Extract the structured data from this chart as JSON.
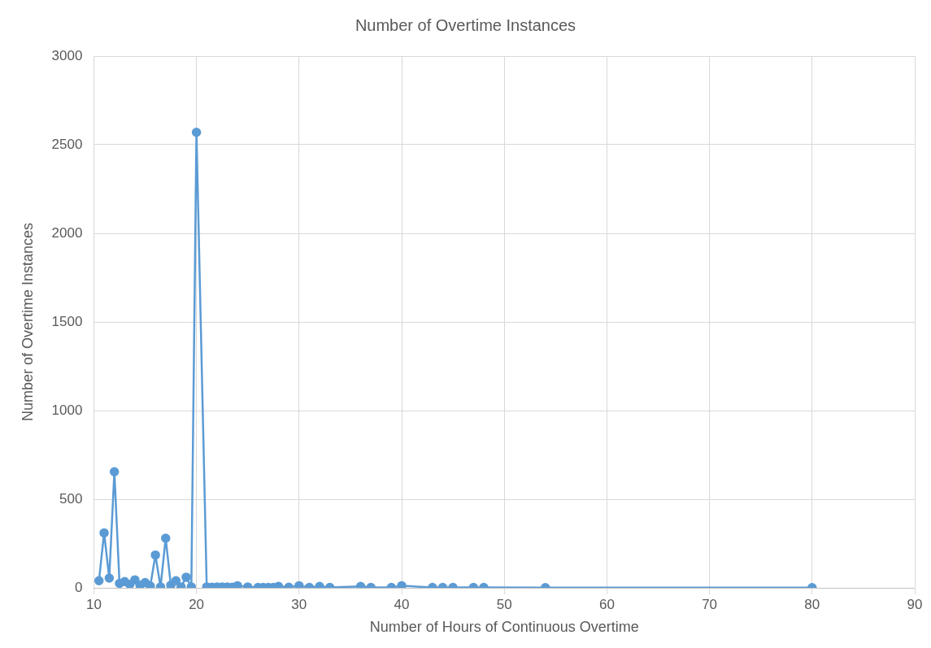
{
  "chart_data": {
    "type": "line",
    "title": "Number of Overtime Instances",
    "xlabel": "Number of Hours of Continuous Overtime",
    "ylabel": "Number of Overtime Instances",
    "x": [
      10.5,
      11,
      11.5,
      12,
      12.5,
      13,
      13.5,
      14,
      14.5,
      15,
      15.5,
      16,
      16.5,
      17,
      17.5,
      18,
      18.5,
      19,
      19.5,
      20,
      21,
      21.5,
      22,
      22.5,
      23,
      23.5,
      24,
      25,
      26,
      26.5,
      27,
      27.5,
      28,
      29,
      30,
      31,
      32,
      33,
      36,
      37,
      39,
      40,
      43,
      44,
      45,
      47,
      48,
      54,
      80
    ],
    "series": [
      {
        "color": "#5b9bd5",
        "values": [
          40,
          310,
          55,
          655,
          25,
          35,
          20,
          45,
          15,
          30,
          10,
          185,
          5,
          280,
          15,
          40,
          5,
          60,
          5,
          2570,
          5,
          3,
          5,
          5,
          5,
          3,
          12,
          5,
          2,
          2,
          2,
          2,
          8,
          3,
          12,
          2,
          8,
          2,
          8,
          2,
          2,
          12,
          2,
          2,
          2,
          2,
          2,
          1,
          1
        ]
      }
    ],
    "xlim": [
      10,
      90
    ],
    "xticks": [
      10,
      20,
      30,
      40,
      50,
      60,
      70,
      80,
      90
    ],
    "ylim": [
      0,
      3000
    ],
    "yticks": [
      0,
      500,
      1000,
      1500,
      2000,
      2500,
      3000
    ],
    "grid": true,
    "legend": false,
    "marker": "circle",
    "line_style": "solid"
  }
}
